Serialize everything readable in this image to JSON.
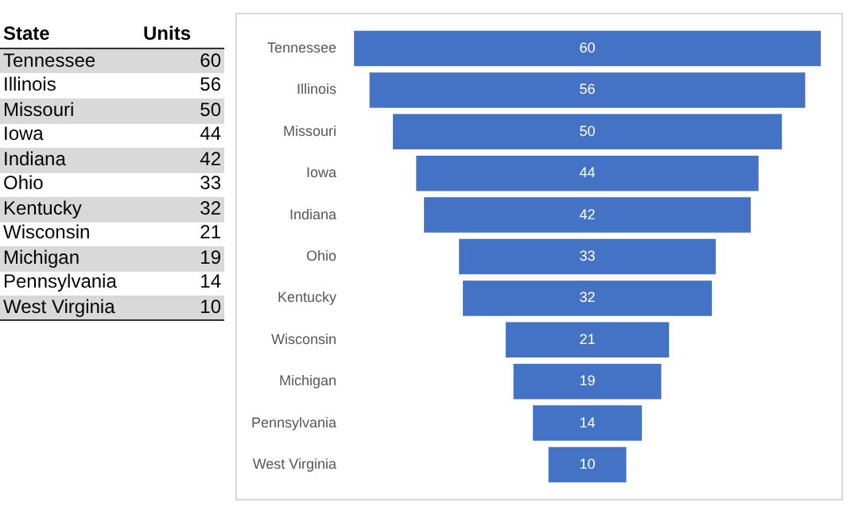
{
  "chart_data": [
    {
      "type": "other",
      "ylabel": "State",
      "xlabel": "Units",
      "categories": [
        "Tennessee",
        "Illinois",
        "Missouri",
        "Iowa",
        "Indiana",
        "Ohio",
        "Kentucky",
        "Wisconsin",
        "Michigan",
        "Pennsylvania",
        "West Virginia"
      ],
      "values": [
        60,
        56,
        50,
        44,
        42,
        33,
        32,
        21,
        19,
        14,
        10
      ],
      "data_labels": true
    },
    {
      "type": "other",
      "categories": [
        "Tennessee",
        "Illinois",
        "Missouri",
        "Iowa",
        "Indiana",
        "Ohio",
        "Kentucky",
        "Wisconsin",
        "Michigan",
        "Pennsylvania",
        "West Virginia"
      ],
      "values": [
        60,
        56,
        50,
        44,
        42,
        33,
        32,
        21,
        19,
        14,
        10
      ],
      "color": "#4472c4",
      "data_labels": true
    }
  ]
}
